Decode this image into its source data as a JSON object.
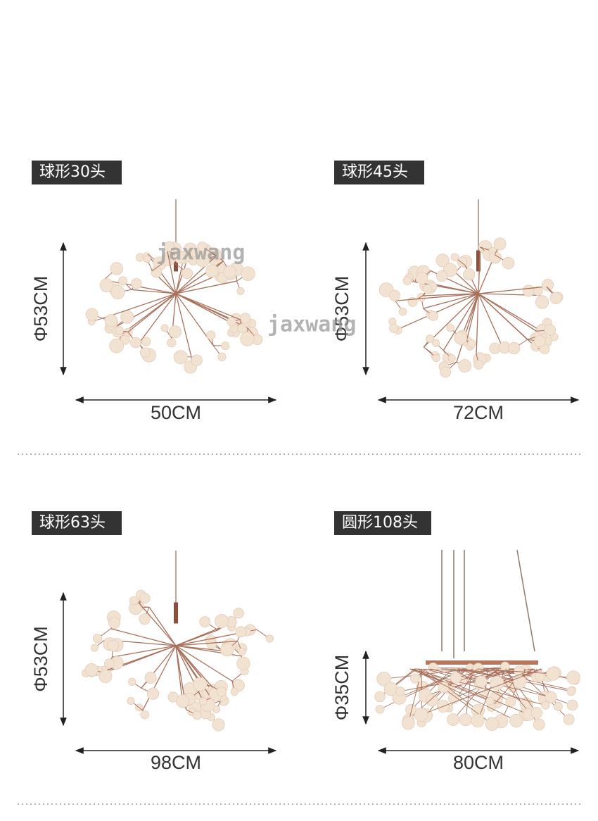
{
  "watermarks": [
    "jaxwang",
    "jaxwang"
  ],
  "products": [
    {
      "label": "球形30头",
      "height": "Φ53CM",
      "width": "50CM"
    },
    {
      "label": "球形45头",
      "height": "Φ53CM",
      "width": "72CM"
    },
    {
      "label": "球形63头",
      "height": "Φ53CM",
      "width": "98CM"
    },
    {
      "label": "圆形108头",
      "height": "Φ35CM",
      "width": "80CM"
    }
  ]
}
